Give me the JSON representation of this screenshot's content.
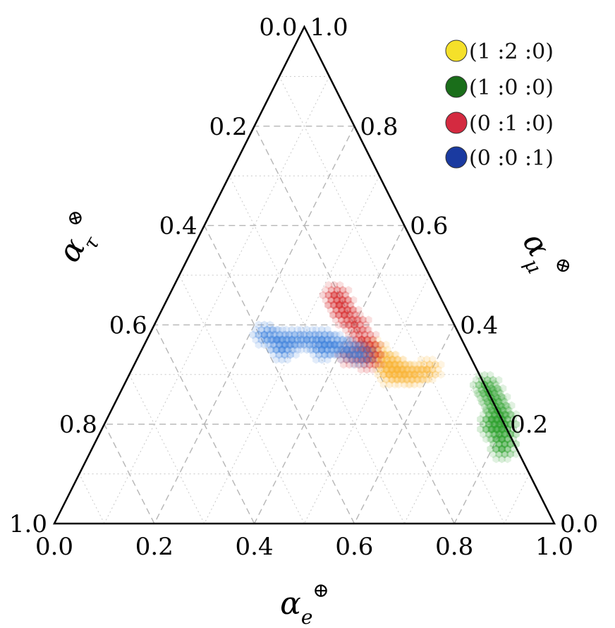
{
  "chart_data": {
    "type": "scatter",
    "subtype": "ternary",
    "title": "",
    "grid": true,
    "legend_position": "top-right",
    "axes": {
      "bottom": {
        "symbol": "α",
        "subscript": "e",
        "superscript": "⊕",
        "ticks": [
          "0.0",
          "0.2",
          "0.4",
          "0.6",
          "0.8",
          "1.0"
        ]
      },
      "right": {
        "symbol": "α",
        "subscript": "μ",
        "superscript": "⊗",
        "ticks": [
          "0.0",
          "0.2",
          "0.4",
          "0.6",
          "0.8",
          "1.0"
        ]
      },
      "left": {
        "symbol": "α",
        "subscript": "τ",
        "superscript": "⊗",
        "ticks": [
          "0.0",
          "0.2",
          "0.4",
          "0.6",
          "0.8",
          "1.0"
        ]
      }
    },
    "series": [
      {
        "name": "(1 :2 :0)",
        "color": "#f9b233",
        "legend_color": "#f5e02a",
        "points": [
          [
            0.46,
            0.35,
            0.19
          ],
          [
            0.49,
            0.33,
            0.18
          ],
          [
            0.51,
            0.32,
            0.17
          ],
          [
            0.53,
            0.31,
            0.16
          ],
          [
            0.55,
            0.3,
            0.15
          ],
          [
            0.57,
            0.3,
            0.13
          ],
          [
            0.59,
            0.31,
            0.1
          ],
          [
            0.52,
            0.3,
            0.18
          ]
        ]
      },
      {
        "name": "(1 :0 :0)",
        "color": "#2ca02c",
        "legend_color": "#1a6e1a",
        "points": [
          [
            0.82,
            0.15,
            0.03
          ],
          [
            0.81,
            0.17,
            0.02
          ],
          [
            0.8,
            0.19,
            0.01
          ],
          [
            0.79,
            0.21,
            0.0
          ],
          [
            0.78,
            0.23,
            -0.01
          ],
          [
            0.77,
            0.25,
            -0.02
          ],
          [
            0.76,
            0.27,
            -0.03
          ],
          [
            0.75,
            0.29,
            -0.04
          ],
          [
            0.77,
            0.21,
            0.02
          ],
          [
            0.78,
            0.19,
            0.03
          ]
        ]
      },
      {
        "name": "(0 :1 :0)",
        "color": "#d62728",
        "legend_color": "#d42a40",
        "points": [
          [
            0.33,
            0.46,
            0.21
          ],
          [
            0.35,
            0.44,
            0.21
          ],
          [
            0.37,
            0.42,
            0.21
          ],
          [
            0.4,
            0.4,
            0.2
          ],
          [
            0.43,
            0.37,
            0.2
          ],
          [
            0.45,
            0.35,
            0.2
          ],
          [
            0.46,
            0.33,
            0.21
          ],
          [
            0.42,
            0.34,
            0.24
          ]
        ]
      },
      {
        "name": "(0 :0 :1)",
        "color": "#3a7fdc",
        "legend_color": "#1a3aa0",
        "points": [
          [
            0.23,
            0.38,
            0.39
          ],
          [
            0.26,
            0.37,
            0.37
          ],
          [
            0.29,
            0.37,
            0.34
          ],
          [
            0.32,
            0.37,
            0.31
          ],
          [
            0.35,
            0.37,
            0.28
          ],
          [
            0.38,
            0.36,
            0.26
          ],
          [
            0.41,
            0.35,
            0.24
          ],
          [
            0.44,
            0.34,
            0.22
          ],
          [
            0.28,
            0.35,
            0.37
          ],
          [
            0.36,
            0.35,
            0.29
          ]
        ]
      }
    ]
  }
}
